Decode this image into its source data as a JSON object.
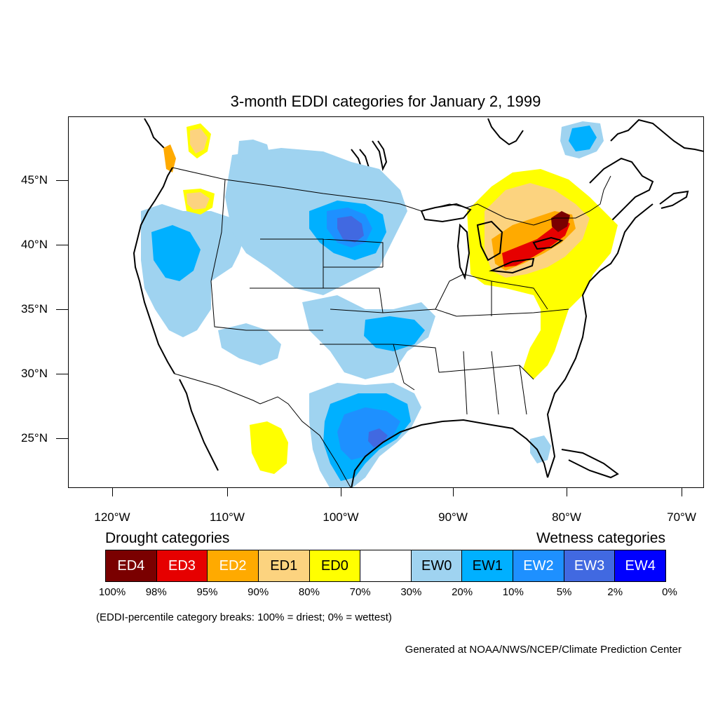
{
  "title": "3-month EDDI categories for January 2, 1999",
  "lat_labels": [
    "45°N",
    "40°N",
    "35°N",
    "30°N",
    "25°N"
  ],
  "lon_labels": [
    "120°W",
    "110°W",
    "100°W",
    "90°W",
    "80°W",
    "70°W"
  ],
  "legend": {
    "drought_heading": "Drought categories",
    "wetness_heading": "Wetness categories",
    "categories": [
      {
        "label": "ED4",
        "color": "#7a0000",
        "text_color": "#ffffff"
      },
      {
        "label": "ED3",
        "color": "#e60000",
        "text_color": "#ffffff"
      },
      {
        "label": "ED2",
        "color": "#ffaa00",
        "text_color": "#ffffff"
      },
      {
        "label": "ED1",
        "color": "#fcd37f",
        "text_color": "#000000"
      },
      {
        "label": "ED0",
        "color": "#ffff00",
        "text_color": "#000000"
      },
      {
        "label": "",
        "color": "#ffffff",
        "text_color": "#000000"
      },
      {
        "label": "EW0",
        "color": "#9fd3f0",
        "text_color": "#000000"
      },
      {
        "label": "EW1",
        "color": "#00b0ff",
        "text_color": "#000000"
      },
      {
        "label": "EW2",
        "color": "#1e90ff",
        "text_color": "#ffffff"
      },
      {
        "label": "EW3",
        "color": "#4169e1",
        "text_color": "#ffffff"
      },
      {
        "label": "EW4",
        "color": "#0000ff",
        "text_color": "#ffffff"
      }
    ],
    "breaks": [
      "100%",
      "98%",
      "95%",
      "90%",
      "80%",
      "70%",
      "30%",
      "20%",
      "10%",
      "5%",
      "2%",
      "0%"
    ]
  },
  "note": "(EDDI-percentile category breaks: 100% = driest; 0% = wettest)",
  "credit": "Generated at NOAA/NWS/NCEP/Climate Prediction Center"
}
